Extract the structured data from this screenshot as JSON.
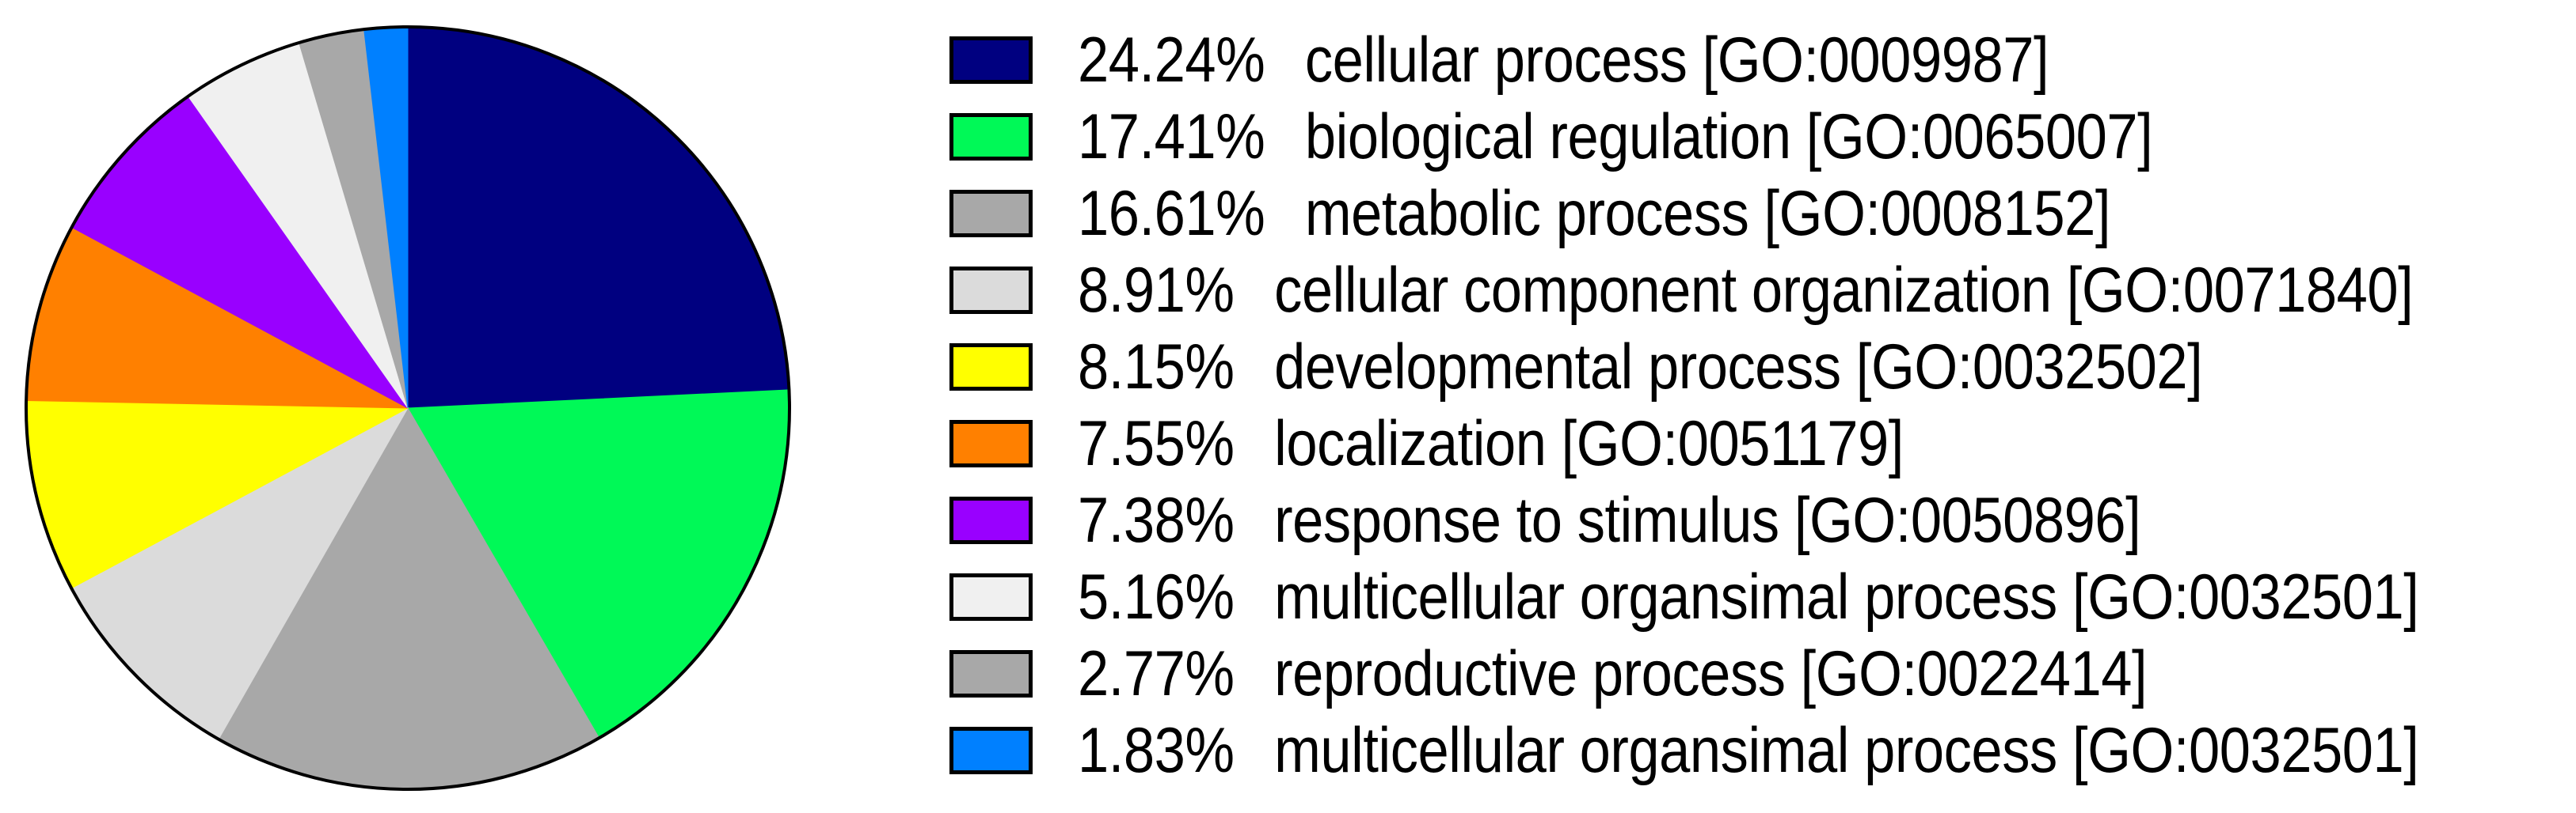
{
  "chart_data": {
    "type": "pie",
    "title": "",
    "legend_position": "right",
    "start_angle_deg": 0,
    "direction": "clockwise",
    "outline_color": "#000000",
    "background_color": "#ffffff",
    "slices": [
      {
        "pct": "24.24%",
        "value": 24.24,
        "label": "cellular process",
        "go_id": "GO:0009987",
        "text": "cellular process [GO:0009987]",
        "color": "#000080"
      },
      {
        "pct": "17.41%",
        "value": 17.41,
        "label": "biological regulation",
        "go_id": "GO:0065007",
        "text": "biological regulation [GO:0065007]",
        "color": "#00F957"
      },
      {
        "pct": "16.61%",
        "value": 16.61,
        "label": "metabolic process",
        "go_id": "GO:0008152",
        "text": "metabolic process [GO:0008152]",
        "color": "#A8A8A8"
      },
      {
        "pct": "8.91%",
        "value": 8.91,
        "label": "cellular component organization",
        "go_id": "GO:0071840",
        "text": "cellular component organization [GO:0071840]",
        "color": "#DBDBDB"
      },
      {
        "pct": "8.15%",
        "value": 8.15,
        "label": "developmental process",
        "go_id": "GO:0032502",
        "text": "developmental process [GO:0032502]",
        "color": "#FFFF00"
      },
      {
        "pct": "7.55%",
        "value": 7.55,
        "label": "localization",
        "go_id": "GO:0051179",
        "text": "localization [GO:0051179]",
        "color": "#FF8000"
      },
      {
        "pct": "7.38%",
        "value": 7.38,
        "label": "response to stimulus",
        "go_id": "GO:0050896",
        "text": "response to stimulus [GO:0050896]",
        "color": "#9900FF"
      },
      {
        "pct": "5.16%",
        "value": 5.16,
        "label": "multicellular organsimal process",
        "go_id": "GO:0032501",
        "text": "multicellular organsimal process [GO:0032501]",
        "color": "#F0F0F0"
      },
      {
        "pct": "2.77%",
        "value": 2.77,
        "label": "reproductive process",
        "go_id": "GO:0022414",
        "text": "reproductive process [GO:0022414]",
        "color": "#A8A8A8"
      },
      {
        "pct": "1.83%",
        "value": 1.83,
        "label": "multicellular organsimal process",
        "go_id": "GO:0032501",
        "text": "multicellular organsimal process [GO:0032501]",
        "color": "#0080FF"
      }
    ]
  }
}
